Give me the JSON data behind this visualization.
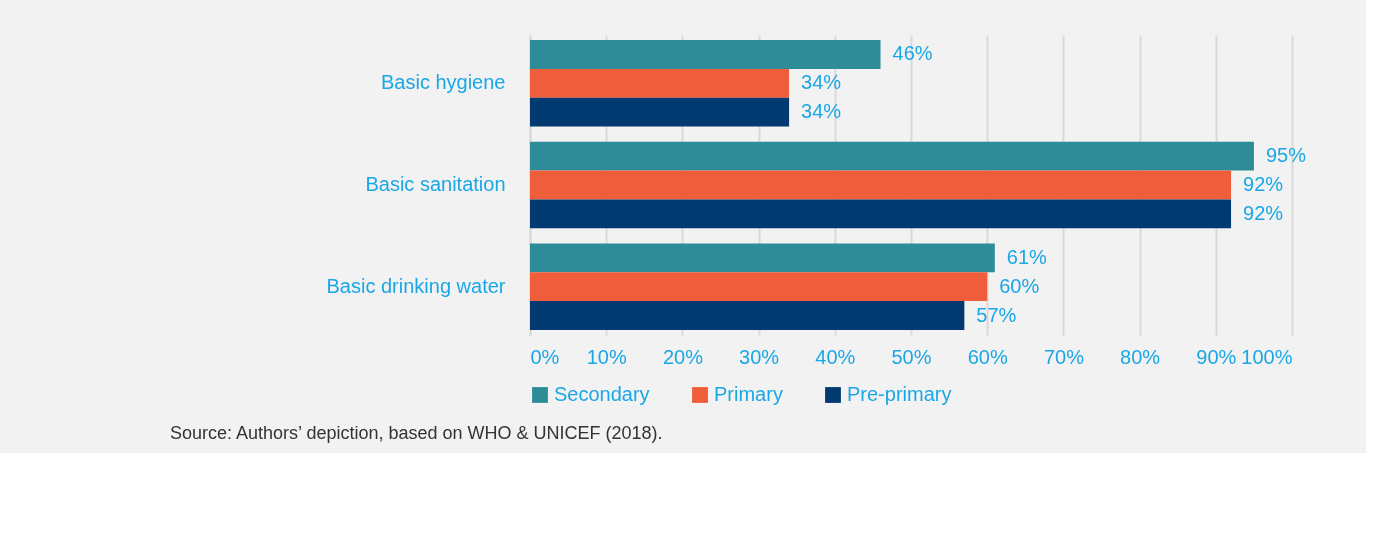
{
  "chart_data": {
    "type": "bar",
    "orientation": "horizontal",
    "categories": [
      "Basic hygiene",
      "Basic sanitation",
      "Basic drinking water"
    ],
    "series": [
      {
        "name": "Secondary",
        "color": "#2e8c99",
        "values": [
          46,
          95,
          61
        ],
        "value_labels": [
          "46%",
          "95%",
          "61%"
        ]
      },
      {
        "name": "Primary",
        "color": "#f05d3b",
        "values": [
          34,
          92,
          60
        ],
        "value_labels": [
          "34%",
          "92%",
          "60%"
        ]
      },
      {
        "name": "Pre-primary",
        "color": "#003a70",
        "values": [
          34,
          92,
          57
        ],
        "value_labels": [
          "34%",
          "92%",
          "57%"
        ]
      }
    ],
    "xlim": [
      0,
      100
    ],
    "xticks": [
      {
        "value": 0,
        "label": "0%"
      },
      {
        "value": 10,
        "label": "10%"
      },
      {
        "value": 20,
        "label": "20%"
      },
      {
        "value": 30,
        "label": "30%"
      },
      {
        "value": 40,
        "label": "40%"
      },
      {
        "value": 50,
        "label": "50%"
      },
      {
        "value": 60,
        "label": "60%"
      },
      {
        "value": 70,
        "label": "70%"
      },
      {
        "value": 80,
        "label": "80%"
      },
      {
        "value": 90,
        "label": "90%"
      },
      {
        "value": 100,
        "label": "100%"
      }
    ],
    "grid": "x",
    "legend": "bottom",
    "annotations": [
      "Source: Authors’ depiction, based on WHO & UNICEF (2018)."
    ]
  }
}
